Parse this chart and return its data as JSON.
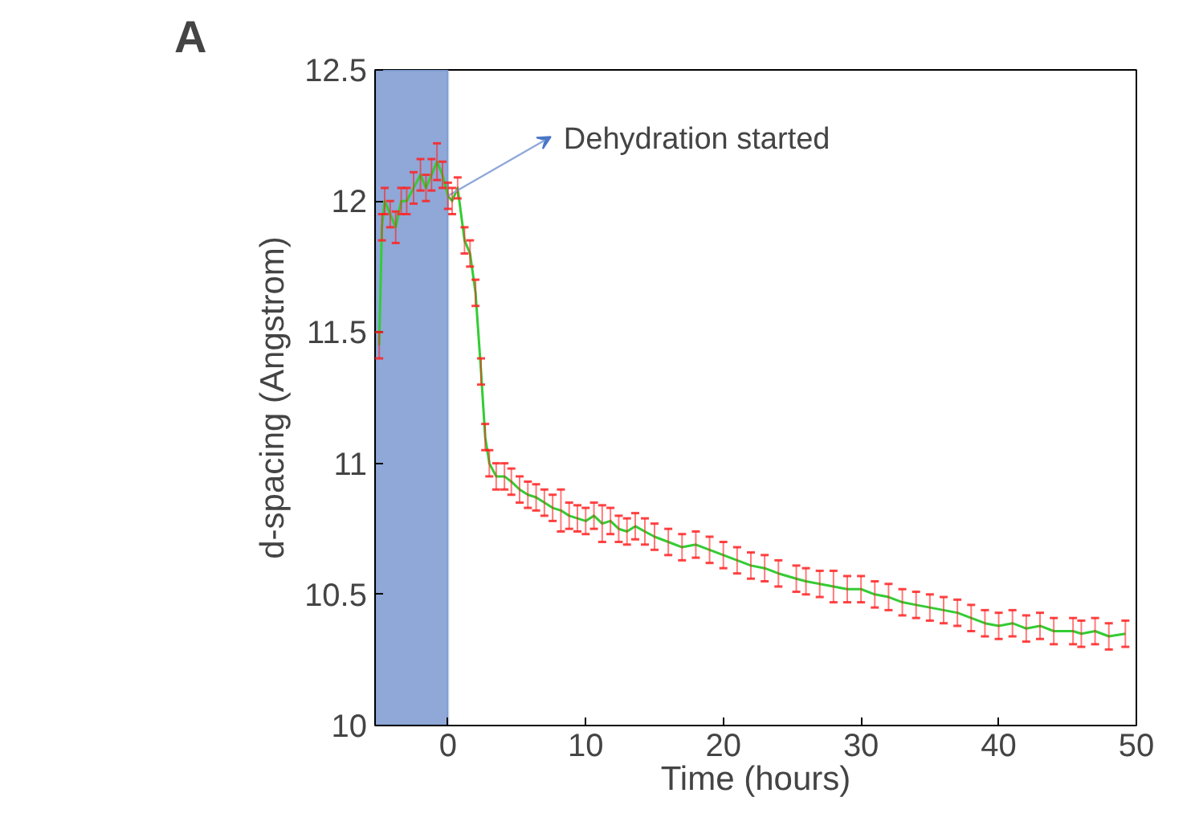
{
  "chart_data": {
    "type": "line",
    "xlabel": "Time (hours)",
    "ylabel": "d-spacing (Angstrom)",
    "annotations": [
      "A",
      {
        "text": "Dehydration started",
        "x": 0,
        "y": 12.02
      }
    ],
    "x": [
      -5.0,
      -4.8,
      -4.6,
      -4.2,
      -3.8,
      -3.4,
      -3.0,
      -2.5,
      -2.0,
      -1.6,
      -1.2,
      -0.8,
      -0.4,
      0.0,
      0.3,
      0.7,
      1.2,
      1.6,
      2.0,
      2.4,
      2.7,
      3.0,
      3.5,
      4.1,
      4.6,
      5.2,
      5.8,
      6.4,
      7.0,
      7.6,
      8.2,
      8.8,
      9.4,
      10.0,
      10.6,
      11.2,
      11.8,
      12.4,
      13.0,
      13.6,
      14.3,
      15.0,
      16.0,
      17.0,
      18.0,
      19.0,
      20.0,
      21.0,
      22.0,
      23.0,
      24.0,
      25.3,
      26.0,
      27.0,
      28.0,
      29.0,
      30.0,
      31.0,
      32.0,
      33.0,
      34.0,
      35.0,
      36.0,
      37.0,
      38.0,
      39.0,
      40.0,
      41.0,
      42.0,
      43.0,
      44.0,
      45.4,
      46.0,
      47.0,
      48.0,
      49.2
    ],
    "series": [
      {
        "color": "#33cc33",
        "values": [
          11.45,
          11.9,
          12.0,
          11.95,
          11.9,
          12.0,
          12.0,
          12.05,
          12.1,
          12.05,
          12.1,
          12.15,
          12.1,
          12.02,
          12.0,
          12.05,
          11.85,
          11.8,
          11.65,
          11.35,
          11.1,
          11.0,
          10.95,
          10.95,
          10.93,
          10.9,
          10.88,
          10.87,
          10.85,
          10.83,
          10.82,
          10.8,
          10.79,
          10.78,
          10.8,
          10.77,
          10.78,
          10.75,
          10.74,
          10.76,
          10.74,
          10.72,
          10.7,
          10.68,
          10.69,
          10.67,
          10.65,
          10.63,
          10.61,
          10.6,
          10.58,
          10.56,
          10.55,
          10.54,
          10.53,
          10.52,
          10.52,
          10.5,
          10.49,
          10.47,
          10.46,
          10.45,
          10.44,
          10.43,
          10.41,
          10.39,
          10.38,
          10.39,
          10.37,
          10.38,
          10.36,
          10.36,
          10.35,
          10.36,
          10.34,
          10.35
        ],
        "errors": [
          0.05,
          0.05,
          0.05,
          0.05,
          0.06,
          0.05,
          0.05,
          0.06,
          0.06,
          0.05,
          0.06,
          0.07,
          0.05,
          0.05,
          0.05,
          0.04,
          0.05,
          0.05,
          0.05,
          0.05,
          0.05,
          0.05,
          0.05,
          0.05,
          0.05,
          0.05,
          0.05,
          0.05,
          0.05,
          0.05,
          0.08,
          0.05,
          0.05,
          0.05,
          0.05,
          0.07,
          0.05,
          0.05,
          0.05,
          0.05,
          0.05,
          0.05,
          0.05,
          0.05,
          0.05,
          0.05,
          0.05,
          0.05,
          0.05,
          0.05,
          0.05,
          0.05,
          0.05,
          0.05,
          0.06,
          0.05,
          0.05,
          0.05,
          0.05,
          0.05,
          0.05,
          0.05,
          0.05,
          0.05,
          0.05,
          0.05,
          0.05,
          0.05,
          0.05,
          0.05,
          0.05,
          0.05,
          0.05,
          0.05,
          0.05,
          0.05
        ]
      }
    ],
    "bands": [
      {
        "axis": "x",
        "from": -5.3,
        "to": 0,
        "color": "#8fa8d8"
      }
    ],
    "xlim": [
      -5.3,
      50
    ],
    "ylim": [
      10,
      12.5
    ],
    "xticks": [
      0,
      10,
      20,
      30,
      40,
      50
    ],
    "yticks": [
      10,
      10.5,
      11,
      11.5,
      12,
      12.5
    ],
    "grid": false,
    "marker": "none",
    "line_style": "solid"
  }
}
